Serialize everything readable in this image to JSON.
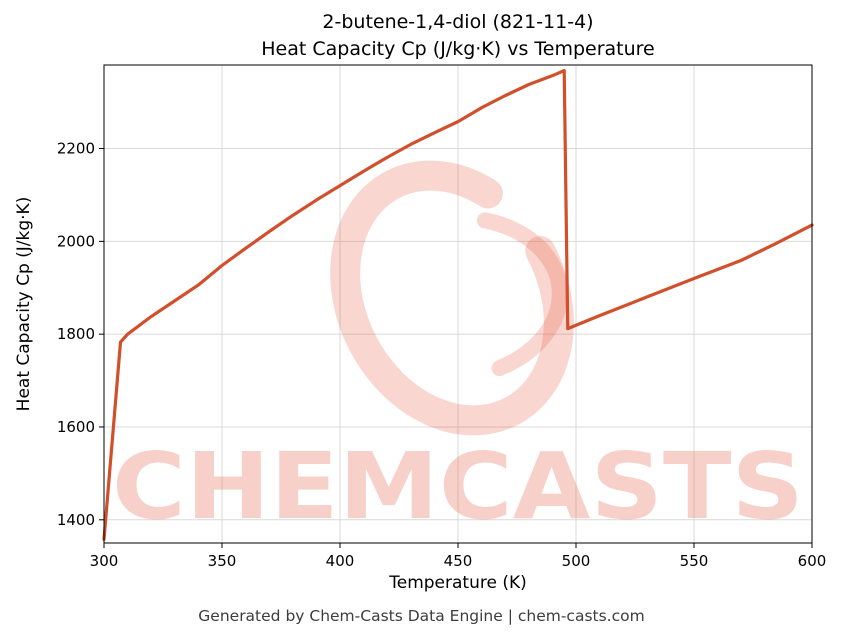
{
  "title": {
    "line1": "2-butene-1,4-diol (821-11-4)",
    "line2": "Heat Capacity Cp (J/kg·K) vs Temperature"
  },
  "footer": "Generated by Chem-Casts Data Engine | chem-casts.com",
  "watermark": {
    "text": "CHEMCASTS",
    "color": "#e4583a",
    "text_opacity": 0.27,
    "logo_opacity": 0.24
  },
  "chart_data": {
    "type": "line",
    "title": "2-butene-1,4-diol (821-11-4) Heat Capacity Cp (J/kg·K) vs Temperature",
    "xlabel": "Temperature (K)",
    "ylabel": "Heat Capacity Cp (J/kg·K)",
    "xlim": [
      300,
      600
    ],
    "ylim": [
      1350,
      2380
    ],
    "xticks": [
      300,
      350,
      400,
      450,
      500,
      550,
      600
    ],
    "yticks": [
      1400,
      1600,
      1800,
      2000,
      2200
    ],
    "grid": true,
    "grid_color": "#d9d9d9",
    "line_color": "#d1502b",
    "legend": "none",
    "series": [
      {
        "name": "Heat Capacity Cp",
        "points": [
          [
            300,
            1358
          ],
          [
            307,
            1783
          ],
          [
            310,
            1800
          ],
          [
            320,
            1838
          ],
          [
            330,
            1872
          ],
          [
            340,
            1906
          ],
          [
            350,
            1948
          ],
          [
            360,
            1985
          ],
          [
            370,
            2021
          ],
          [
            380,
            2056
          ],
          [
            390,
            2089
          ],
          [
            400,
            2120
          ],
          [
            410,
            2151
          ],
          [
            420,
            2181
          ],
          [
            430,
            2209
          ],
          [
            440,
            2234
          ],
          [
            450,
            2258
          ],
          [
            460,
            2288
          ],
          [
            470,
            2314
          ],
          [
            480,
            2338
          ],
          [
            490,
            2357
          ],
          [
            495,
            2368
          ],
          [
            496.5,
            1812
          ],
          [
            510,
            1840
          ],
          [
            530,
            1880
          ],
          [
            550,
            1920
          ],
          [
            570,
            1959
          ],
          [
            585,
            1996
          ],
          [
            600,
            2035
          ]
        ]
      }
    ]
  }
}
